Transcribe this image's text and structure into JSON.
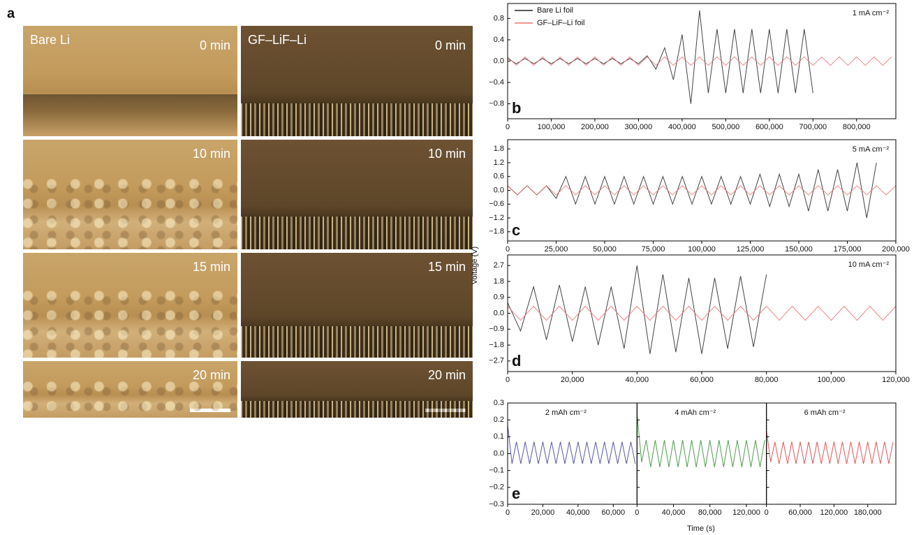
{
  "panel_a": {
    "label": "a",
    "columns": [
      "Bare Li",
      "GF–LiF–Li"
    ],
    "times": [
      "0 min",
      "10 min",
      "15 min",
      "20 min"
    ]
  },
  "figure": {
    "y_label": "Voltage (V)",
    "x_label": "Time (s)"
  },
  "chart_data": [
    {
      "type": "line",
      "panel_label": "b",
      "annotation": "1 mA cm⁻²",
      "legend": "upper left",
      "x": [
        0,
        20000,
        40000,
        60000,
        80000,
        100000,
        120000,
        140000,
        160000,
        180000,
        200000,
        220000,
        240000,
        260000,
        280000,
        300000,
        320000,
        340000,
        360000,
        380000,
        400000,
        420000,
        440000,
        460000,
        480000,
        500000,
        520000,
        540000,
        560000,
        580000,
        600000,
        620000,
        640000,
        660000,
        680000,
        700000,
        720000,
        740000,
        760000,
        780000,
        800000,
        820000,
        840000,
        860000,
        880000
      ],
      "series": [
        {
          "name": "Bare Li foil",
          "color": "#222222",
          "values": [
            0.05,
            -0.05,
            0.05,
            -0.05,
            0.05,
            -0.05,
            0.05,
            -0.05,
            0.05,
            -0.05,
            0.05,
            -0.05,
            0.05,
            -0.05,
            0.05,
            -0.05,
            0.1,
            -0.15,
            0.25,
            -0.35,
            0.5,
            -0.8,
            0.95,
            -0.6,
            0.6,
            -0.6,
            0.6,
            -0.6,
            0.6,
            -0.6,
            0.6,
            -0.6,
            0.6,
            -0.6,
            0.6,
            -0.6,
            null,
            null,
            null,
            null,
            null,
            null,
            null,
            null,
            null
          ]
        },
        {
          "name": "GF–LiF–Li foil",
          "color": "#f07070",
          "values": [
            0.08,
            -0.08,
            0.08,
            -0.08,
            0.08,
            -0.08,
            0.08,
            -0.08,
            0.08,
            -0.08,
            0.08,
            -0.08,
            0.08,
            -0.08,
            0.08,
            -0.08,
            0.08,
            -0.08,
            0.08,
            -0.08,
            0.08,
            -0.08,
            0.08,
            -0.08,
            0.08,
            -0.08,
            0.08,
            -0.08,
            0.08,
            -0.08,
            0.08,
            -0.08,
            0.08,
            -0.08,
            0.08,
            -0.08,
            0.08,
            -0.08,
            0.08,
            -0.08,
            0.08,
            -0.08,
            0.08,
            -0.08,
            0.08
          ]
        }
      ],
      "xlim": [
        0,
        890000
      ],
      "xticks": [
        0,
        {
          "value": 100000,
          "label": "100,000"
        },
        {
          "value": 200000,
          "label": "200,000"
        },
        {
          "value": 300000,
          "label": "300,000"
        },
        {
          "value": 400000,
          "label": "400,000"
        },
        {
          "value": 500000,
          "label": "500,000"
        },
        {
          "value": 600000,
          "label": "600,000"
        },
        {
          "value": 700000,
          "label": "700,000"
        },
        {
          "value": 800000,
          "label": "800,000"
        }
      ],
      "ylim": [
        -1.08,
        1.08
      ],
      "yticks": [
        {
          "value": -0.8,
          "label": "−0.8"
        },
        {
          "value": -0.4,
          "label": "−0.4"
        },
        {
          "value": 0,
          "label": "0.0"
        },
        0.4,
        0.8
      ]
    },
    {
      "type": "line",
      "panel_label": "c",
      "annotation": "5 mA cm⁻²",
      "x": [
        0,
        5000,
        10000,
        15000,
        20000,
        25000,
        30000,
        35000,
        40000,
        45000,
        50000,
        55000,
        60000,
        65000,
        70000,
        75000,
        80000,
        85000,
        90000,
        95000,
        100000,
        105000,
        110000,
        115000,
        120000,
        125000,
        130000,
        135000,
        140000,
        145000,
        150000,
        155000,
        160000,
        165000,
        170000,
        175000,
        180000,
        185000,
        190000,
        195000,
        200000
      ],
      "series": [
        {
          "color": "#222222",
          "values": [
            0.2,
            -0.2,
            0.2,
            -0.2,
            0.2,
            -0.35,
            0.6,
            -0.6,
            0.6,
            -0.6,
            0.6,
            -0.6,
            0.6,
            -0.6,
            0.6,
            -0.6,
            0.6,
            -0.6,
            0.6,
            -0.6,
            0.6,
            -0.6,
            0.6,
            -0.6,
            0.6,
            -0.6,
            0.7,
            -0.7,
            0.7,
            -0.7,
            0.7,
            -0.9,
            0.9,
            -0.9,
            0.9,
            -0.9,
            1.2,
            -1.2,
            1.2,
            null,
            null
          ]
        },
        {
          "color": "#f07070",
          "values": [
            0.2,
            -0.2,
            0.2,
            -0.2,
            0.2,
            -0.2,
            0.2,
            -0.2,
            0.2,
            -0.2,
            0.2,
            -0.2,
            0.2,
            -0.2,
            0.2,
            -0.2,
            0.2,
            -0.2,
            0.2,
            -0.2,
            0.2,
            -0.2,
            0.2,
            -0.2,
            0.2,
            -0.2,
            0.2,
            -0.2,
            0.2,
            -0.2,
            0.2,
            -0.2,
            0.2,
            -0.2,
            0.2,
            -0.2,
            0.2,
            -0.2,
            0.2,
            -0.2,
            0.2
          ]
        }
      ],
      "xlim": [
        0,
        200000
      ],
      "xticks": [
        0,
        {
          "value": 25000,
          "label": "25,000"
        },
        {
          "value": 50000,
          "label": "50,000"
        },
        {
          "value": 75000,
          "label": "75,000"
        },
        {
          "value": 100000,
          "label": "100,000"
        },
        {
          "value": 125000,
          "label": "125,000"
        },
        {
          "value": 150000,
          "label": "150,000"
        },
        {
          "value": 175000,
          "label": "175,000"
        },
        {
          "value": 200000,
          "label": "200,000"
        }
      ],
      "ylim": [
        -2.2,
        2.2
      ],
      "yticks": [
        {
          "value": -1.8,
          "label": "−1.8"
        },
        {
          "value": -1.2,
          "label": "−1.2"
        },
        {
          "value": -0.6,
          "label": "−0.6"
        },
        {
          "value": 0,
          "label": "0.0"
        },
        0.6,
        1.2,
        1.8
      ]
    },
    {
      "type": "line",
      "panel_label": "d",
      "annotation": "10 mA cm⁻²",
      "x": [
        0,
        4000,
        8000,
        12000,
        16000,
        20000,
        24000,
        28000,
        32000,
        36000,
        40000,
        44000,
        48000,
        52000,
        56000,
        60000,
        64000,
        68000,
        72000,
        76000,
        80000,
        84000,
        88000,
        92000,
        96000,
        100000,
        104000,
        108000,
        112000,
        116000,
        120000
      ],
      "series": [
        {
          "color": "#222222",
          "values": [
            0.6,
            -1.0,
            1.5,
            -1.5,
            1.6,
            -1.6,
            1.5,
            -1.8,
            1.5,
            -2.0,
            2.7,
            -2.3,
            2.2,
            -2.2,
            2.0,
            -2.3,
            2.0,
            -2.0,
            2.1,
            -1.9,
            2.2,
            null,
            null,
            null,
            null,
            null,
            null,
            null,
            null,
            null,
            null
          ]
        },
        {
          "color": "#f07070",
          "values": [
            0.4,
            -0.4,
            0.4,
            -0.4,
            0.4,
            -0.4,
            0.4,
            -0.4,
            0.4,
            -0.4,
            0.4,
            -0.4,
            0.4,
            -0.4,
            0.4,
            -0.4,
            0.4,
            -0.4,
            0.4,
            -0.4,
            0.4,
            -0.4,
            0.4,
            -0.4,
            0.4,
            -0.4,
            0.4,
            -0.4,
            0.4,
            -0.4,
            0.4
          ]
        }
      ],
      "xlim": [
        0,
        120000
      ],
      "xticks": [
        0,
        {
          "value": 20000,
          "label": "20,000"
        },
        {
          "value": 40000,
          "label": "40,000"
        },
        {
          "value": 60000,
          "label": "60,000"
        },
        {
          "value": 80000,
          "label": "80,000"
        },
        {
          "value": 100000,
          "label": "100,000"
        },
        {
          "value": 120000,
          "label": "120,000"
        }
      ],
      "ylim": [
        -3.3,
        3.3
      ],
      "yticks": [
        {
          "value": -2.7,
          "label": "−2.7"
        },
        {
          "value": -1.8,
          "label": "−1.8"
        },
        {
          "value": -0.9,
          "label": "−0.9"
        },
        {
          "value": 0,
          "label": "0.0"
        },
        0.9,
        1.8,
        2.7
      ]
    },
    {
      "type": "line",
      "panel_label": "e",
      "ylim": [
        -0.3,
        0.3
      ],
      "yticks": [
        {
          "value": -0.3,
          "label": "−0.3"
        },
        {
          "value": -0.2,
          "label": "−0.2"
        },
        {
          "value": -0.1,
          "label": "−0.1"
        },
        {
          "value": 0,
          "label": "0.0"
        },
        0.1,
        0.2,
        0.3
      ],
      "subplots": [
        {
          "annotation": "2 mAh cm⁻²",
          "xlim": [
            0,
            73500
          ],
          "xticks": [
            0,
            {
              "value": 20000,
              "label": "20,000"
            },
            {
              "value": 40000,
              "label": "40,000"
            },
            {
              "value": 60000,
              "label": "60,000"
            }
          ],
          "x": [
            0,
            2500,
            5000,
            7500,
            10000,
            12500,
            15000,
            17500,
            20000,
            22500,
            25000,
            27500,
            30000,
            32500,
            35000,
            37500,
            40000,
            42500,
            45000,
            47500,
            50000,
            52500,
            55000,
            57500,
            60000,
            62500,
            65000,
            67500,
            70000,
            72500
          ],
          "series": [
            {
              "color": "#3a3aa0",
              "values": [
                0.17,
                -0.06,
                0.07,
                -0.06,
                0.07,
                -0.06,
                0.07,
                -0.06,
                0.07,
                -0.06,
                0.07,
                -0.06,
                0.07,
                -0.06,
                0.07,
                -0.06,
                0.07,
                -0.06,
                0.07,
                -0.06,
                0.07,
                -0.06,
                0.07,
                -0.06,
                0.07,
                -0.06,
                0.07,
                -0.06,
                0.07,
                -0.06
              ]
            }
          ]
        },
        {
          "annotation": "4 mAh cm⁻²",
          "xlim": [
            0,
            142000
          ],
          "xticks": [
            0,
            {
              "value": 40000,
              "label": "40,000"
            },
            {
              "value": 80000,
              "label": "80,000"
            },
            {
              "value": 120000,
              "label": "120,000"
            }
          ],
          "x": [
            0,
            5000,
            10000,
            15000,
            20000,
            25000,
            30000,
            35000,
            40000,
            45000,
            50000,
            55000,
            60000,
            65000,
            70000,
            75000,
            80000,
            85000,
            90000,
            95000,
            100000,
            105000,
            110000,
            115000,
            120000,
            125000,
            130000,
            135000,
            140000
          ],
          "series": [
            {
              "color": "#2e8b2e",
              "values": [
                0.24,
                -0.05,
                0.08,
                -0.08,
                0.08,
                -0.08,
                0.08,
                -0.08,
                0.08,
                -0.08,
                0.08,
                -0.08,
                0.08,
                -0.08,
                0.08,
                -0.08,
                0.08,
                -0.08,
                0.08,
                -0.08,
                0.08,
                -0.08,
                0.08,
                -0.08,
                0.08,
                -0.08,
                0.08,
                -0.08,
                0.08
              ]
            }
          ]
        },
        {
          "annotation": "6 mAh cm⁻²",
          "xlim": [
            0,
            230000
          ],
          "xticks": [
            0,
            {
              "value": 60000,
              "label": "60,000"
            },
            {
              "value": 120000,
              "label": "120,000"
            },
            {
              "value": 180000,
              "label": "180,000"
            }
          ],
          "x": [
            0,
            7500,
            15000,
            22500,
            30000,
            37500,
            45000,
            52500,
            60000,
            67500,
            75000,
            82500,
            90000,
            97500,
            105000,
            112500,
            120000,
            127500,
            135000,
            142500,
            150000,
            157500,
            165000,
            172500,
            180000,
            187500,
            195000,
            202500,
            210000,
            217500,
            225000
          ],
          "series": [
            {
              "color": "#e03a3a",
              "values": [
                0.14,
                -0.05,
                0.07,
                -0.06,
                0.07,
                -0.06,
                0.07,
                -0.06,
                0.07,
                -0.06,
                0.07,
                -0.06,
                0.07,
                -0.06,
                0.07,
                -0.06,
                0.07,
                -0.06,
                0.07,
                -0.06,
                0.07,
                -0.06,
                0.07,
                -0.06,
                0.07,
                -0.06,
                0.07,
                -0.06,
                0.07,
                -0.06,
                0.07
              ]
            }
          ]
        }
      ]
    }
  ]
}
